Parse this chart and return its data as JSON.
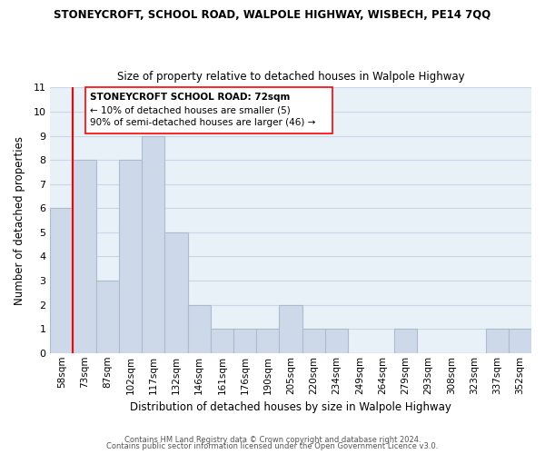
{
  "title": "STONEYCROFT, SCHOOL ROAD, WALPOLE HIGHWAY, WISBECH, PE14 7QQ",
  "subtitle": "Size of property relative to detached houses in Walpole Highway",
  "xlabel": "Distribution of detached houses by size in Walpole Highway",
  "ylabel": "Number of detached properties",
  "bin_labels": [
    "58sqm",
    "73sqm",
    "87sqm",
    "102sqm",
    "117sqm",
    "132sqm",
    "146sqm",
    "161sqm",
    "176sqm",
    "190sqm",
    "205sqm",
    "220sqm",
    "234sqm",
    "249sqm",
    "264sqm",
    "279sqm",
    "293sqm",
    "308sqm",
    "323sqm",
    "337sqm",
    "352sqm"
  ],
  "bar_values": [
    6,
    8,
    3,
    8,
    9,
    5,
    2,
    1,
    1,
    1,
    2,
    1,
    1,
    0,
    0,
    1,
    0,
    0,
    0,
    1,
    1
  ],
  "bar_color": "#cdd9e8",
  "bar_edge_color": "#aabcce",
  "ax_bg_color": "#e8f0f8",
  "ylim": [
    0,
    11
  ],
  "yticks": [
    0,
    1,
    2,
    3,
    4,
    5,
    6,
    7,
    8,
    9,
    10,
    11
  ],
  "annotation_title": "STONEYCROFT SCHOOL ROAD: 72sqm",
  "annotation_line1": "← 10% of detached houses are smaller (5)",
  "annotation_line2": "90% of semi-detached houses are larger (46) →",
  "footer1": "Contains HM Land Registry data © Crown copyright and database right 2024.",
  "footer2": "Contains public sector information licensed under the Open Government Licence v3.0.",
  "background_color": "#ffffff",
  "grid_color": "#c8d8e8"
}
